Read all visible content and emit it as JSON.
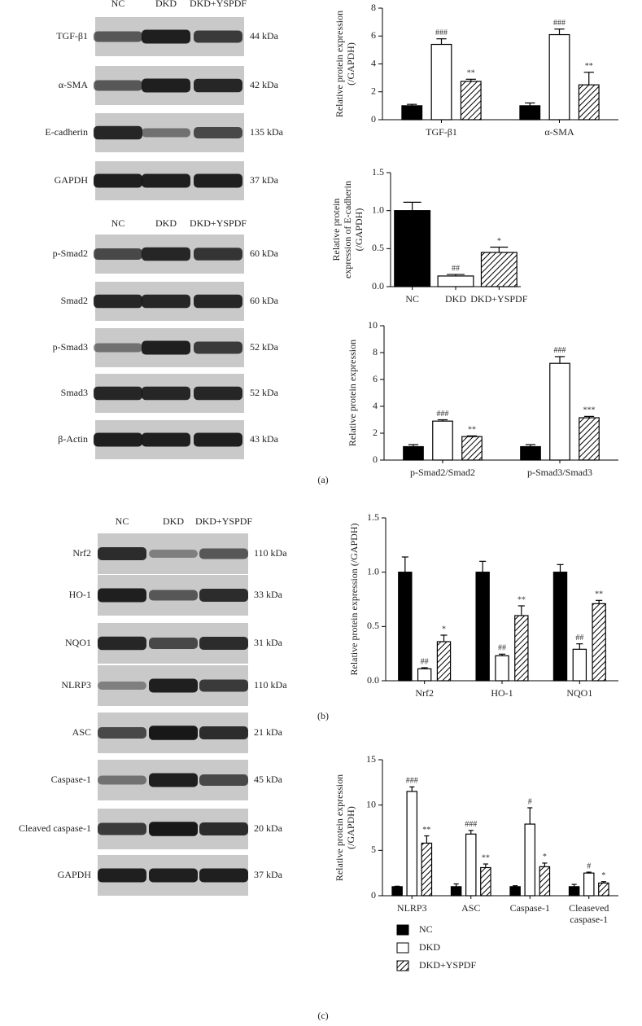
{
  "blots": [
    {
      "lanes": [
        "NC",
        "DKD",
        "DKD+YSPDF"
      ],
      "rows": [
        {
          "label": "TGF-β1",
          "size": "44 kDa"
        },
        {
          "label": "α-SMA",
          "size": "42 kDa"
        },
        {
          "label": "E-cadherin",
          "size": "135 kDa"
        },
        {
          "label": "GAPDH",
          "size": "37 kDa"
        }
      ]
    },
    {
      "lanes": [
        "NC",
        "DKD",
        "DKD+YSPDF"
      ],
      "rows": [
        {
          "label": "p-Smad2",
          "size": "60 kDa"
        },
        {
          "label": "Smad2",
          "size": "60 kDa"
        },
        {
          "label": "p-Smad3",
          "size": "52 kDa"
        },
        {
          "label": "Smad3",
          "size": "52 kDa"
        },
        {
          "label": "β-Actin",
          "size": "43 kDa"
        }
      ]
    },
    {
      "lanes": [
        "NC",
        "DKD",
        "DKD+YSPDF"
      ],
      "rows": [
        {
          "label": "Nrf2",
          "size": "110 kDa"
        },
        {
          "label": "HO-1",
          "size": "33 kDa"
        },
        {
          "label": "NQO1",
          "size": "31 kDa"
        },
        {
          "label": "NLRP3",
          "size": "110 kDa"
        },
        {
          "label": "ASC",
          "size": "21 kDa"
        },
        {
          "label": "Caspase-1",
          "size": "45 kDa"
        },
        {
          "label": "Cleaved caspase-1",
          "size": "20 kDa"
        },
        {
          "label": "GAPDH",
          "size": "37 kDa"
        }
      ]
    }
  ],
  "panels": [
    "(a)",
    "(b)",
    "(c)"
  ],
  "chart_data": [
    {
      "type": "bar",
      "ylabel": [
        "Relative protein expression",
        "(/GAPDH)"
      ],
      "categories": [
        "TGF-β1",
        "α-SMA"
      ],
      "ylim": [
        0,
        8
      ],
      "yticks": [
        0,
        2,
        4,
        6,
        8
      ],
      "series": [
        {
          "name": "NC",
          "style": "solid",
          "values": [
            1.0,
            1.0
          ],
          "errors": [
            0.1,
            0.2
          ],
          "annotations": [
            null,
            null
          ]
        },
        {
          "name": "DKD",
          "style": "open",
          "values": [
            5.4,
            6.1
          ],
          "errors": [
            0.4,
            0.4
          ],
          "annotations": [
            "###",
            "###"
          ]
        },
        {
          "name": "DKD+YSPDF",
          "style": "hatch",
          "values": [
            2.75,
            2.5
          ],
          "errors": [
            0.15,
            0.9
          ],
          "annotations": [
            "**",
            "**"
          ]
        }
      ]
    },
    {
      "type": "bar",
      "ylabel": [
        "Relative protein",
        "expression of E-cadherin",
        "(/GAPDH)"
      ],
      "categories": [
        "NC",
        "DKD",
        "DKD+YSPDF"
      ],
      "ylim": [
        0,
        1.5
      ],
      "yticks": [
        {
          "value": 0,
          "label": "0.0"
        },
        0.5,
        {
          "value": 1,
          "label": "1.0"
        },
        1.5
      ],
      "styles": [
        "solid",
        "open",
        "hatch"
      ],
      "values": [
        1.0,
        0.14,
        0.45
      ],
      "errors": [
        0.11,
        0.02,
        0.07
      ],
      "annotations": [
        null,
        "##",
        "*"
      ]
    },
    {
      "type": "bar",
      "ylabel": [
        "Relative protein expression"
      ],
      "categories": [
        "p-Smad2/Smad2",
        "p-Smad3/Smad3"
      ],
      "ylim": [
        0,
        10
      ],
      "yticks": [
        0,
        2,
        4,
        6,
        8,
        10
      ],
      "series": [
        {
          "name": "NC",
          "style": "solid",
          "values": [
            1.0,
            1.0
          ],
          "errors": [
            0.15,
            0.15
          ],
          "annotations": [
            null,
            null
          ]
        },
        {
          "name": "DKD",
          "style": "open",
          "values": [
            2.9,
            7.2
          ],
          "errors": [
            0.1,
            0.5
          ],
          "annotations": [
            "###",
            "###"
          ]
        },
        {
          "name": "DKD+YSPDF",
          "style": "hatch",
          "values": [
            1.75,
            3.15
          ],
          "errors": [
            0.05,
            0.1
          ],
          "annotations": [
            "**",
            "***"
          ]
        }
      ]
    },
    {
      "type": "bar",
      "ylabel": [
        "Relative protein expression (/GAPDH)"
      ],
      "categories": [
        "Nrf2",
        "HO-1",
        "NQO1"
      ],
      "ylim": [
        0,
        1.5
      ],
      "yticks": [
        {
          "value": 0,
          "label": "0.0"
        },
        0.5,
        {
          "value": 1,
          "label": "1.0"
        },
        1.5
      ],
      "series": [
        {
          "name": "NC",
          "style": "solid",
          "values": [
            1.0,
            1.0,
            1.0
          ],
          "errors": [
            0.14,
            0.1,
            0.07
          ],
          "annotations": [
            null,
            null,
            null
          ]
        },
        {
          "name": "DKD",
          "style": "open",
          "values": [
            0.11,
            0.23,
            0.29
          ],
          "errors": [
            0.01,
            0.015,
            0.05
          ],
          "annotations": [
            "##",
            "##",
            "##"
          ]
        },
        {
          "name": "DKD+YSPDF",
          "style": "hatch",
          "values": [
            0.36,
            0.6,
            0.71
          ],
          "errors": [
            0.06,
            0.09,
            0.03
          ],
          "annotations": [
            "*",
            "**",
            "**"
          ]
        }
      ]
    },
    {
      "type": "bar",
      "ylabel": [
        "Relative protein expression",
        "(/GAPDH)"
      ],
      "categories": [
        "NLRP3",
        "ASC",
        "Caspase-1",
        "Cleaseved caspase-1"
      ],
      "ylim": [
        0,
        15
      ],
      "yticks": [
        0,
        5,
        10,
        15
      ],
      "legend": "below",
      "series": [
        {
          "name": "NC",
          "style": "solid",
          "values": [
            1.0,
            1.0,
            1.0,
            1.0
          ],
          "errors": [
            0.05,
            0.3,
            0.1,
            0.25
          ],
          "annotations": [
            null,
            null,
            null,
            null
          ]
        },
        {
          "name": "DKD",
          "style": "open",
          "values": [
            11.5,
            6.8,
            7.9,
            2.5
          ],
          "errors": [
            0.5,
            0.4,
            1.8,
            0.1
          ],
          "annotations": [
            "###",
            "###",
            "#",
            "#"
          ]
        },
        {
          "name": "DKD+YSPDF",
          "style": "hatch",
          "values": [
            5.8,
            3.1,
            3.2,
            1.4
          ],
          "errors": [
            0.8,
            0.4,
            0.4,
            0.15
          ],
          "annotations": [
            "**",
            "**",
            "*",
            "*"
          ]
        }
      ]
    }
  ]
}
